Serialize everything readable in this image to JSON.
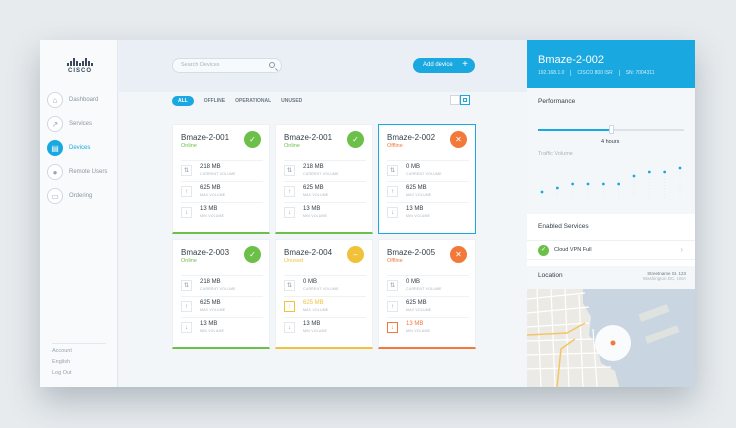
{
  "brand": {
    "logo_text": "CISCO"
  },
  "sidebar": {
    "items": [
      {
        "label": "Dashboard",
        "icon": "home-icon",
        "active": false
      },
      {
        "label": "Services",
        "icon": "chart-icon",
        "active": false
      },
      {
        "label": "Devices",
        "icon": "devices-icon",
        "active": true
      },
      {
        "label": "Remote Users",
        "icon": "user-icon",
        "active": false
      },
      {
        "label": "Ordering",
        "icon": "cart-icon",
        "active": false
      }
    ],
    "footer": [
      "Account",
      "English",
      "Log Out"
    ]
  },
  "toolbar": {
    "search_placeholder": "Search Devices",
    "add_label": "Add device",
    "add_symbol": "+"
  },
  "filters": [
    "ALL",
    "OFFLINE",
    "OPERATIONAL",
    "UNUSED"
  ],
  "active_filter": "ALL",
  "devices": [
    {
      "name": "Bmaze-2-001",
      "status": "Online",
      "state": "online",
      "symbol": "✓",
      "metrics": [
        {
          "value": "218 MB",
          "label": "CURRENT VOLUME",
          "icon": "⇅",
          "tone": ""
        },
        {
          "value": "625 MB",
          "label": "MAX VOLUME",
          "icon": "↑",
          "tone": ""
        },
        {
          "value": "13 MB",
          "label": "MIN VOLUME",
          "icon": "↓",
          "tone": ""
        }
      ]
    },
    {
      "name": "Bmaze-2-001",
      "status": "Online",
      "state": "online",
      "symbol": "✓",
      "metrics": [
        {
          "value": "218 MB",
          "label": "CURRENT VOLUME",
          "icon": "⇅",
          "tone": ""
        },
        {
          "value": "625 MB",
          "label": "MAX VOLUME",
          "icon": "↑",
          "tone": ""
        },
        {
          "value": "13 MB",
          "label": "MIN VOLUME",
          "icon": "↓",
          "tone": ""
        }
      ]
    },
    {
      "name": "Bmaze-2-002",
      "status": "Offline",
      "state": "offline",
      "symbol": "✕",
      "selected": true,
      "metrics": [
        {
          "value": "0 MB",
          "label": "CURRENT VOLUME",
          "icon": "⇅",
          "tone": ""
        },
        {
          "value": "625 MB",
          "label": "MAX VOLUME",
          "icon": "↑",
          "tone": ""
        },
        {
          "value": "13 MB",
          "label": "MIN VOLUME",
          "icon": "↓",
          "tone": ""
        }
      ]
    },
    {
      "name": "Bmaze-2-003",
      "status": "Online",
      "state": "online",
      "symbol": "✓",
      "metrics": [
        {
          "value": "218 MB",
          "label": "CURRENT VOLUME",
          "icon": "⇅",
          "tone": ""
        },
        {
          "value": "625 MB",
          "label": "MAX VOLUME",
          "icon": "↑",
          "tone": ""
        },
        {
          "value": "13 MB",
          "label": "MIN VOLUME",
          "icon": "↓",
          "tone": ""
        }
      ]
    },
    {
      "name": "Bmaze-2-004",
      "status": "Unused",
      "state": "unused",
      "symbol": "–",
      "metrics": [
        {
          "value": "0 MB",
          "label": "CURRENT VOLUME",
          "icon": "⇅",
          "tone": ""
        },
        {
          "value": "625 MB",
          "label": "MAX VOLUME",
          "icon": "↑",
          "tone": "warn"
        },
        {
          "value": "13 MB",
          "label": "MIN VOLUME",
          "icon": "↓",
          "tone": ""
        }
      ]
    },
    {
      "name": "Bmaze-2-005",
      "status": "Offline",
      "state": "offline",
      "symbol": "✕",
      "metrics": [
        {
          "value": "0 MB",
          "label": "CURRENT VOLUME",
          "icon": "⇅",
          "tone": ""
        },
        {
          "value": "625 MB",
          "label": "MAX VOLUME",
          "icon": "↑",
          "tone": ""
        },
        {
          "value": "13 MB",
          "label": "MIN VOLUME",
          "icon": "↓",
          "tone": "err"
        }
      ]
    }
  ],
  "panel": {
    "title": "Bmaze-2-002",
    "ip": "192.168.1.0",
    "model": "CISCO 800 ISR",
    "serial": "SN: 7004311",
    "performance_title": "Performance",
    "slider_value": "4 hours",
    "slider_fraction": 0.5,
    "traffic_title": "Traffic Volume",
    "traffic_points": [
      1,
      2,
      3,
      3,
      3,
      3,
      5,
      6,
      6,
      7
    ],
    "services_title": "Enabled Services",
    "service_name": "Cloud VPN Full",
    "location_title": "Location",
    "address_line1": "Streetname St. 123",
    "address_line2": "Washington DC, USA"
  },
  "colors": {
    "accent": "#1aa8e0",
    "online": "#6cc04a",
    "offline": "#f2793a",
    "unused": "#f0c23a"
  }
}
